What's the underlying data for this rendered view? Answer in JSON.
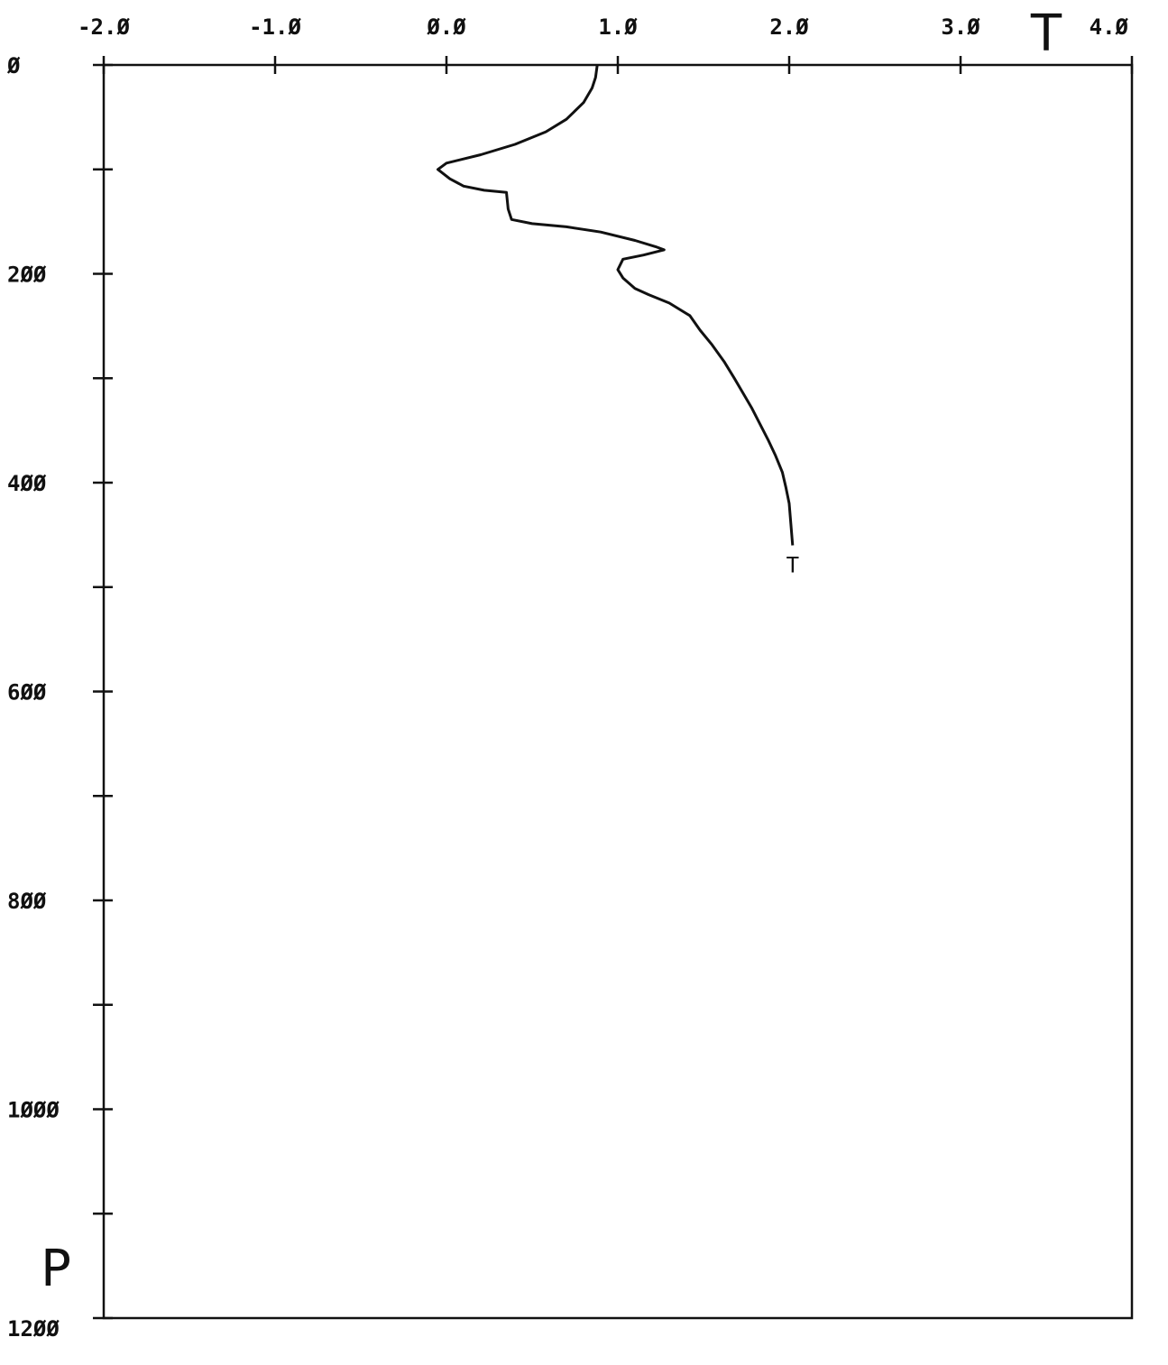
{
  "chart_data": {
    "type": "line",
    "title": "",
    "xlabel": "T",
    "ylabel": "P",
    "x_ticks": [
      -2.0,
      -1.0,
      0.0,
      1.0,
      2.0,
      3.0,
      4.0
    ],
    "x_tick_labels": [
      "-2.Ø",
      "-1.Ø",
      "Ø.Ø",
      "1.Ø",
      "2.Ø",
      "3.Ø",
      "4.Ø"
    ],
    "y_ticks": [
      0,
      100,
      200,
      300,
      400,
      500,
      600,
      700,
      800,
      900,
      1000,
      1100,
      1200
    ],
    "y_tick_labels": [
      "Ø",
      "",
      "2ØØ",
      "",
      "4ØØ",
      "",
      "6ØØ",
      "",
      "8ØØ",
      "",
      "1ØØØ",
      "",
      "12ØØ"
    ],
    "xlim": [
      -2.0,
      4.0
    ],
    "ylim": [
      0,
      1200
    ],
    "y_inverted": true,
    "x_axis_position": "top",
    "grid": false,
    "end_marker": "T",
    "series": [
      {
        "x": [
          0.88,
          0.87,
          0.85,
          0.8,
          0.7,
          0.58,
          0.4,
          0.2,
          0.0,
          -0.05,
          0.02,
          0.1,
          0.22,
          0.35,
          0.36,
          0.38,
          0.5,
          0.7,
          0.9,
          1.1,
          1.22,
          1.27,
          1.15,
          1.03,
          1.0,
          1.03,
          1.1,
          1.18,
          1.3,
          1.42,
          1.48,
          1.55,
          1.62,
          1.68,
          1.73,
          1.78,
          1.83,
          1.88,
          1.92,
          1.96,
          1.98,
          2.0,
          2.01,
          2.02
        ],
        "y": [
          0,
          12,
          22,
          36,
          52,
          64,
          76,
          86,
          94,
          100,
          109,
          116,
          120,
          122,
          138,
          148,
          152,
          155,
          160,
          168,
          174,
          177,
          182,
          186,
          196,
          204,
          214,
          220,
          228,
          240,
          254,
          268,
          284,
          300,
          314,
          328,
          344,
          360,
          374,
          390,
          404,
          420,
          440,
          460
        ]
      }
    ]
  }
}
